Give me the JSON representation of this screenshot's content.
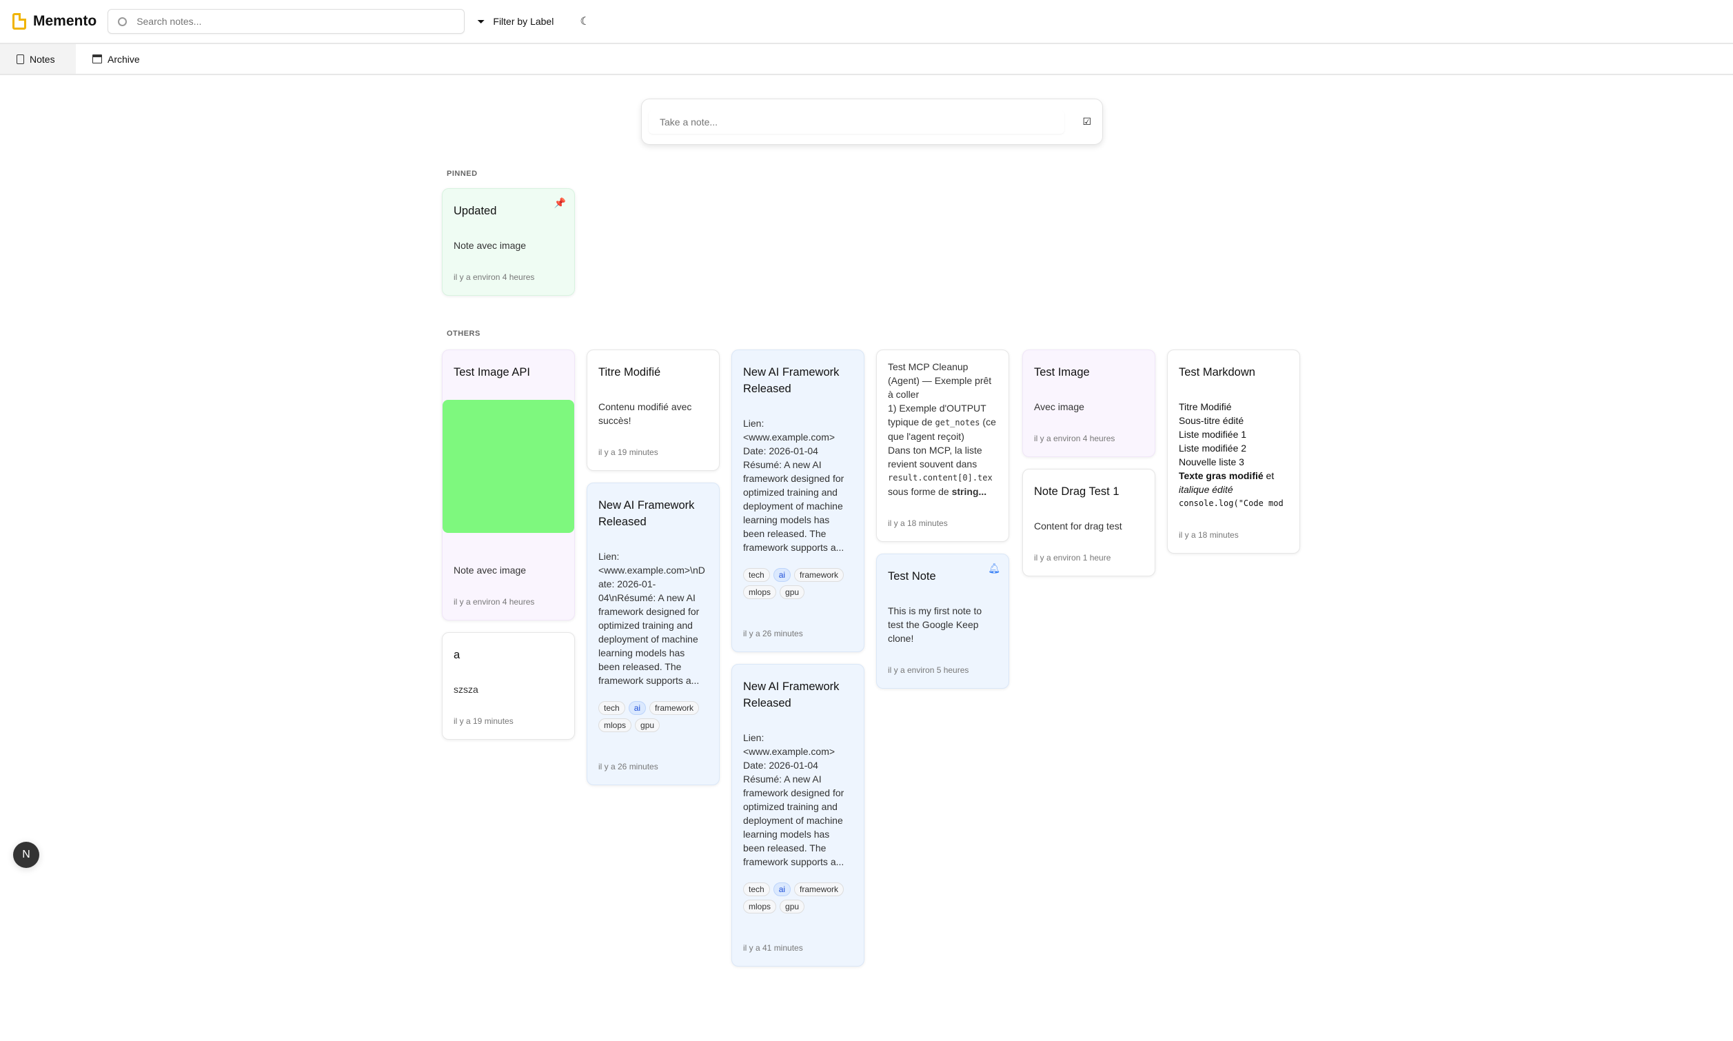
{
  "app": {
    "title": "Memento",
    "brand_color": "#f0b400"
  },
  "header": {
    "search_placeholder": "Search notes...",
    "filter_label": "Filter by Label",
    "theme_icon": "moon-icon"
  },
  "tabs": [
    {
      "label": "Notes",
      "active": true
    },
    {
      "label": "Archive",
      "active": false
    }
  ],
  "composer": {
    "placeholder": "Take a note..."
  },
  "sections": {
    "pinned": "PINNED",
    "others": "OTHERS"
  },
  "pinned": [
    {
      "title": "Updated",
      "body": "Note avec image",
      "time": "il y a environ 4 heures",
      "color": "#effcf3"
    }
  ],
  "notes": {
    "test_image_api": {
      "title": "Test Image API",
      "body": "Note avec image",
      "time": "il y a environ 4 heures",
      "image_color": "#7ef87e"
    },
    "a": {
      "title": "a",
      "body": "szsza",
      "time": "il y a 19 minutes"
    },
    "titre": {
      "title": "Titre Modifié",
      "body": "Contenu modifié avec succès!",
      "time": "il y a 19 minutes"
    },
    "ai1": {
      "title": "New AI Framework Released",
      "body": "Lien: <www.example.com>\\nDate: 2026-01-04\\nRésumé: A new AI framework designed for optimized training and deployment of machine learning models has been released. The framework supports a...",
      "time": "il y a 26 minutes",
      "tags": [
        "tech",
        "ai",
        "framework",
        "mlops",
        "gpu"
      ]
    },
    "ai2": {
      "title": "New AI Framework Released",
      "body": "Lien:\n<www.example.com>\nDate: 2026-01-04\nRésumé: A new AI framework designed for optimized training and deployment of machine learning models has been released. The framework supports a...",
      "time": "il y a 26 minutes",
      "tags": [
        "tech",
        "ai",
        "framework",
        "mlops",
        "gpu"
      ]
    },
    "ai3": {
      "title": "New AI Framework Released",
      "body": "Lien:\n<www.example.com>\nDate: 2026-01-04\nRésumé: A new AI framework designed for optimized training and deployment of machine learning models has been released. The framework supports a...",
      "time": "il y a 41 minutes",
      "tags": [
        "tech",
        "ai",
        "framework",
        "mlops",
        "gpu"
      ]
    },
    "mcp": {
      "line1": "Test MCP Cleanup (Agent) — Exemple prêt à coller",
      "line2a": "1) Exemple d'OUTPUT typique de ",
      "code1": "get_notes",
      "line2b": " (ce que l'agent reçoit)",
      "line3": "Dans ton MCP, la liste revient souvent dans",
      "code2": "result.content[0].tex",
      "line4a": "sous forme de ",
      "bold": "string...",
      "time": "il y a 18 minutes"
    },
    "test_note": {
      "title": "Test Note",
      "body": "This is my first note to test the Google Keep clone!",
      "time": "il y a environ 5 heures"
    },
    "test_image": {
      "title": "Test Image",
      "body": "Avec image",
      "time": "il y a environ 4 heures"
    },
    "drag": {
      "title": "Note Drag Test 1",
      "body": "Content for drag test",
      "time": "il y a environ 1 heure"
    },
    "markdown": {
      "title": "Test Markdown",
      "lines": [
        "Titre Modifié",
        "Sous-titre édité",
        "Liste modifiée 1",
        "Liste modifiée 2",
        "Nouvelle liste 3"
      ],
      "bold": "Texte gras modifié",
      "after_bold": " et",
      "italic": "italique édité",
      "code": "console.log(\"Code mod",
      "time": "il y a 18 minutes"
    }
  },
  "fab": {
    "label": "N"
  }
}
